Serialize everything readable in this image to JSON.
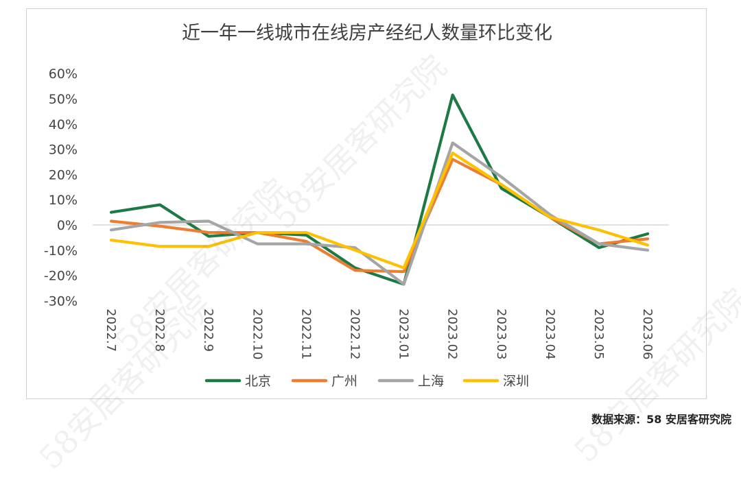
{
  "chart_data": {
    "type": "line",
    "title": "近一年一线城市在线房产经纪人数量环比变化",
    "categories": [
      "2022.7",
      "2022.8",
      "2022.9",
      "2022.10",
      "2022.11",
      "2022.12",
      "2023.01",
      "2023.02",
      "2023.03",
      "2023.04",
      "2023.05",
      "2023.06"
    ],
    "y_ticks": [
      "60%",
      "50%",
      "40%",
      "30%",
      "20%",
      "10%",
      "0%",
      "-10%",
      "-20%",
      "-30%"
    ],
    "ylim": [
      -30,
      60
    ],
    "unit": "%",
    "grid": "zero-line only",
    "legend_position": "bottom",
    "series": [
      {
        "name": "北京",
        "color": "#1e7a44",
        "values": [
          5,
          8,
          -4.5,
          -3,
          -4,
          -17,
          -23.5,
          51.5,
          14.5,
          3,
          -9,
          -3.5
        ]
      },
      {
        "name": "广州",
        "color": "#ed7d31",
        "values": [
          1.5,
          -0.5,
          -3,
          -3,
          -6.5,
          -18,
          -18.5,
          26,
          16,
          3,
          -7.5,
          -5.5
        ]
      },
      {
        "name": "上海",
        "color": "#a5a5a5",
        "values": [
          -2,
          1,
          1.5,
          -7.5,
          -7.5,
          -9,
          -23.5,
          32.5,
          19,
          4,
          -7.5,
          -10
        ]
      },
      {
        "name": "深圳",
        "color": "#ffc000",
        "values": [
          -6,
          -8.5,
          -8.5,
          -3,
          -3,
          -10,
          -17,
          28.5,
          16,
          3,
          -2,
          -8
        ]
      }
    ]
  },
  "source_note": "数据来源：58 安居客研究院",
  "watermark": "58安居客研究院"
}
